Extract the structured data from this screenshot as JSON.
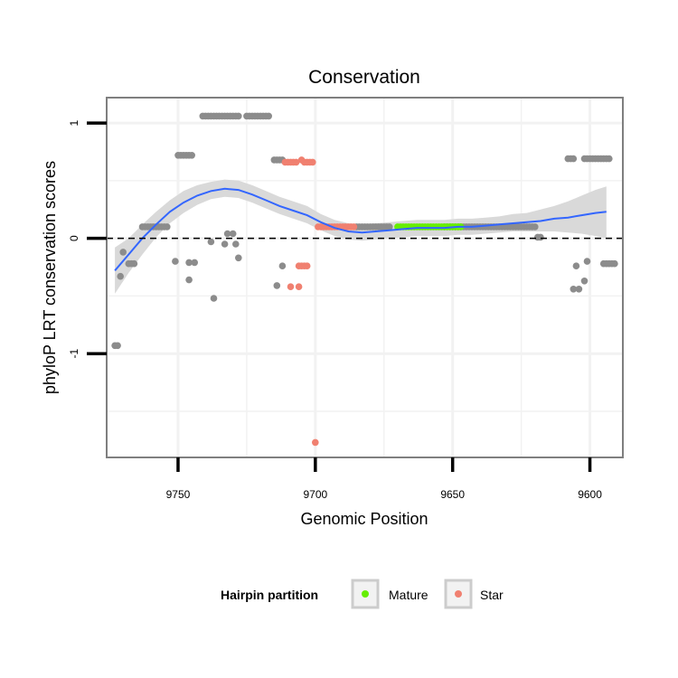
{
  "chart_data": {
    "type": "scatter",
    "title": "Conservation",
    "xlabel": "Genomic Position",
    "ylabel": "phyloP LRT conservation scores",
    "x_reversed": true,
    "xlim": [
      9776,
      9588
    ],
    "ylim": [
      -1.9,
      1.22
    ],
    "x_ticks": [
      {
        "value": 9750,
        "label": "9750"
      },
      {
        "value": 9700,
        "label": "9700"
      },
      {
        "value": 9650,
        "label": "9650"
      },
      {
        "value": 9600,
        "label": "9600"
      }
    ],
    "y_ticks": [
      {
        "value": 1,
        "label": "1"
      },
      {
        "value": 0,
        "label": "0"
      },
      {
        "value": -1,
        "label": "-1"
      }
    ],
    "reference_line": {
      "y": 0,
      "style": "dashed"
    },
    "legend": {
      "title": "Hairpin partition",
      "position": "bottom",
      "entries": [
        {
          "label": "Mature",
          "color": "#66ee00"
        },
        {
          "label": "Star",
          "color": "#f08070"
        }
      ]
    },
    "colors": {
      "other": "#8c8c8c",
      "mature": "#66ee00",
      "star": "#f08070",
      "smooth": "#3366ff",
      "ribbon": "#d9d9d9",
      "panel_border": "#7f7f7f",
      "grid": "#f2f2f2"
    },
    "series": [
      {
        "name": "Other",
        "color": "#8c8c8c",
        "segments": [
          {
            "x_from": 9773,
            "x_to": 9772,
            "y": -0.93
          },
          {
            "x_from": 9768,
            "x_to": 9766,
            "y": -0.22
          },
          {
            "x_from": 9763,
            "x_to": 9754,
            "y": 0.1
          },
          {
            "x_from": 9750,
            "x_to": 9745,
            "y": 0.72
          },
          {
            "x_from": 9741,
            "x_to": 9728,
            "y": 1.06
          },
          {
            "x_from": 9725,
            "x_to": 9717,
            "y": 1.06
          },
          {
            "x_from": 9715,
            "x_to": 9712,
            "y": 0.68
          },
          {
            "x_from": 9685,
            "x_to": 9673,
            "y": 0.1
          },
          {
            "x_from": 9653,
            "x_to": 9620,
            "y": 0.1
          },
          {
            "x_from": 9608,
            "x_to": 9606,
            "y": 0.69
          },
          {
            "x_from": 9602,
            "x_to": 9593,
            "y": 0.69
          },
          {
            "x_from": 9595,
            "x_to": 9591,
            "y": -0.22
          }
        ],
        "points": [
          {
            "x": 9771,
            "y": -0.33
          },
          {
            "x": 9770,
            "y": -0.12
          },
          {
            "x": 9751,
            "y": -0.2
          },
          {
            "x": 9746,
            "y": -0.21
          },
          {
            "x": 9746,
            "y": -0.36
          },
          {
            "x": 9744,
            "y": -0.21
          },
          {
            "x": 9738,
            "y": -0.03
          },
          {
            "x": 9737,
            "y": -0.52
          },
          {
            "x": 9733,
            "y": -0.05
          },
          {
            "x": 9732,
            "y": 0.04
          },
          {
            "x": 9730,
            "y": 0.04
          },
          {
            "x": 9729,
            "y": -0.05
          },
          {
            "x": 9728,
            "y": -0.17
          },
          {
            "x": 9714,
            "y": -0.41
          },
          {
            "x": 9712,
            "y": -0.24
          },
          {
            "x": 9619,
            "y": 0.01
          },
          {
            "x": 9618,
            "y": 0.01
          },
          {
            "x": 9606,
            "y": -0.44
          },
          {
            "x": 9605,
            "y": -0.24
          },
          {
            "x": 9604,
            "y": -0.44
          },
          {
            "x": 9602,
            "y": -0.37
          },
          {
            "x": 9601,
            "y": -0.2
          }
        ]
      },
      {
        "name": "Star",
        "color": "#f08070",
        "segments": [
          {
            "x_from": 9711,
            "x_to": 9707,
            "y": 0.66
          },
          {
            "x_from": 9704,
            "x_to": 9701,
            "y": 0.66
          },
          {
            "x_from": 9699,
            "x_to": 9686,
            "y": 0.1
          },
          {
            "x_from": 9706,
            "x_to": 9703,
            "y": -0.24
          }
        ],
        "points": [
          {
            "x": 9705,
            "y": 0.68
          },
          {
            "x": 9709,
            "y": -0.42
          },
          {
            "x": 9706,
            "y": -0.42
          },
          {
            "x": 9700,
            "y": -1.77
          }
        ]
      },
      {
        "name": "Mature",
        "color": "#66ee00",
        "segments": [
          {
            "x_from": 9670,
            "x_to": 9647,
            "y": 0.1
          }
        ],
        "points": []
      }
    ],
    "smooth_curve": [
      {
        "x": 9773,
        "y": -0.28,
        "lo": -0.48,
        "hi": -0.08
      },
      {
        "x": 9768,
        "y": -0.14,
        "lo": -0.3,
        "hi": 0.0
      },
      {
        "x": 9763,
        "y": 0.0,
        "lo": -0.14,
        "hi": 0.12
      },
      {
        "x": 9758,
        "y": 0.12,
        "lo": 0.01,
        "hi": 0.23
      },
      {
        "x": 9753,
        "y": 0.23,
        "lo": 0.13,
        "hi": 0.33
      },
      {
        "x": 9748,
        "y": 0.31,
        "lo": 0.22,
        "hi": 0.41
      },
      {
        "x": 9743,
        "y": 0.37,
        "lo": 0.29,
        "hi": 0.46
      },
      {
        "x": 9738,
        "y": 0.41,
        "lo": 0.34,
        "hi": 0.49
      },
      {
        "x": 9733,
        "y": 0.43,
        "lo": 0.36,
        "hi": 0.51
      },
      {
        "x": 9728,
        "y": 0.42,
        "lo": 0.35,
        "hi": 0.5
      },
      {
        "x": 9723,
        "y": 0.38,
        "lo": 0.31,
        "hi": 0.46
      },
      {
        "x": 9718,
        "y": 0.33,
        "lo": 0.26,
        "hi": 0.41
      },
      {
        "x": 9713,
        "y": 0.28,
        "lo": 0.21,
        "hi": 0.36
      },
      {
        "x": 9708,
        "y": 0.24,
        "lo": 0.17,
        "hi": 0.32
      },
      {
        "x": 9703,
        "y": 0.2,
        "lo": 0.13,
        "hi": 0.28
      },
      {
        "x": 9698,
        "y": 0.14,
        "lo": 0.07,
        "hi": 0.21
      },
      {
        "x": 9693,
        "y": 0.09,
        "lo": 0.02,
        "hi": 0.16
      },
      {
        "x": 9688,
        "y": 0.06,
        "lo": -0.01,
        "hi": 0.13
      },
      {
        "x": 9683,
        "y": 0.05,
        "lo": -0.02,
        "hi": 0.12
      },
      {
        "x": 9678,
        "y": 0.06,
        "lo": -0.01,
        "hi": 0.13
      },
      {
        "x": 9673,
        "y": 0.07,
        "lo": 0.0,
        "hi": 0.14
      },
      {
        "x": 9668,
        "y": 0.08,
        "lo": 0.01,
        "hi": 0.15
      },
      {
        "x": 9663,
        "y": 0.09,
        "lo": 0.02,
        "hi": 0.16
      },
      {
        "x": 9658,
        "y": 0.09,
        "lo": 0.02,
        "hi": 0.16
      },
      {
        "x": 9653,
        "y": 0.09,
        "lo": 0.02,
        "hi": 0.16
      },
      {
        "x": 9648,
        "y": 0.1,
        "lo": 0.03,
        "hi": 0.17
      },
      {
        "x": 9643,
        "y": 0.1,
        "lo": 0.03,
        "hi": 0.17
      },
      {
        "x": 9638,
        "y": 0.11,
        "lo": 0.04,
        "hi": 0.18
      },
      {
        "x": 9633,
        "y": 0.12,
        "lo": 0.05,
        "hi": 0.19
      },
      {
        "x": 9628,
        "y": 0.13,
        "lo": 0.06,
        "hi": 0.21
      },
      {
        "x": 9623,
        "y": 0.14,
        "lo": 0.06,
        "hi": 0.22
      },
      {
        "x": 9618,
        "y": 0.15,
        "lo": 0.06,
        "hi": 0.25
      },
      {
        "x": 9613,
        "y": 0.17,
        "lo": 0.06,
        "hi": 0.28
      },
      {
        "x": 9608,
        "y": 0.18,
        "lo": 0.05,
        "hi": 0.32
      },
      {
        "x": 9603,
        "y": 0.2,
        "lo": 0.04,
        "hi": 0.37
      },
      {
        "x": 9598,
        "y": 0.22,
        "lo": 0.02,
        "hi": 0.42
      },
      {
        "x": 9594,
        "y": 0.23,
        "lo": 0.0,
        "hi": 0.45
      }
    ]
  }
}
